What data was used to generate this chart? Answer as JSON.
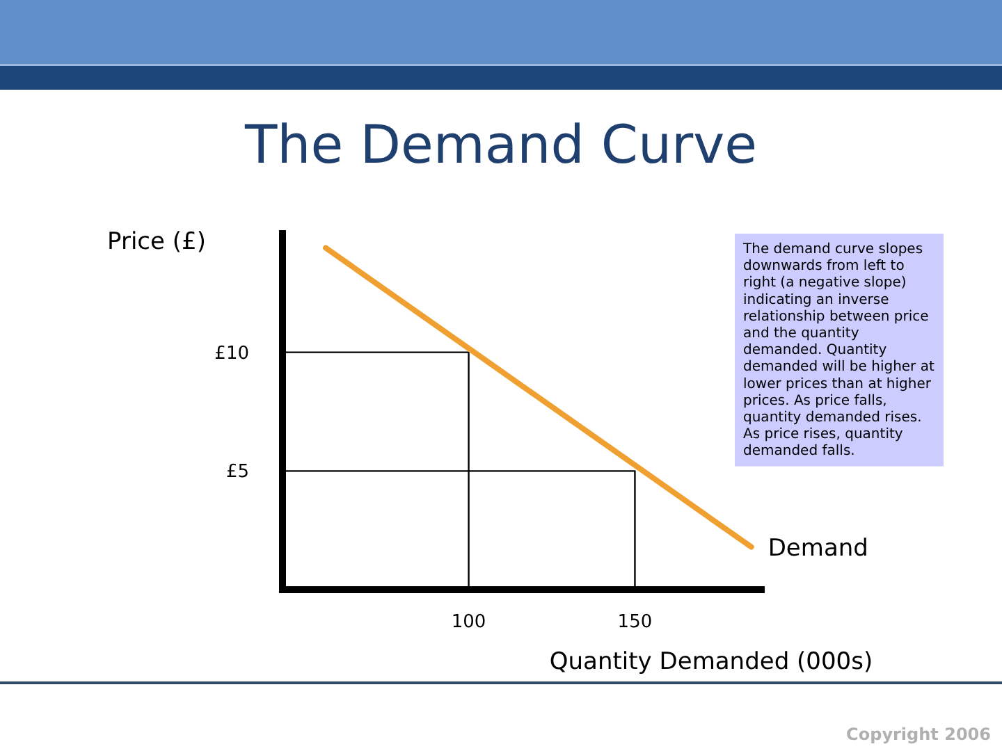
{
  "chart_data": {
    "type": "line",
    "title": "The Demand Curve",
    "xlabel": "Quantity Demanded (000s)",
    "ylabel": "Price (£)",
    "xlim": [
      44,
      188
    ],
    "xticks": [
      100,
      150
    ],
    "ylim": [
      0,
      15
    ],
    "yticks": [
      {
        "value": 5,
        "label": "£5"
      },
      {
        "value": 10,
        "label": "£10"
      }
    ],
    "series": [
      {
        "name": "Demand",
        "color": "#f0a030",
        "x": [
          57,
          185
        ],
        "values": [
          14.4,
          1.8
        ]
      },
      {
        "color": "#000000",
        "x": [
          44,
          100,
          100
        ],
        "values": [
          10,
          10,
          0
        ]
      },
      {
        "color": "#000000",
        "x": [
          44,
          150,
          150
        ],
        "values": [
          5,
          5,
          0
        ]
      }
    ],
    "annotations": [
      "The demand curve slopes downwards from left to right (a negative slope) indicating an inverse relationship between price and the quantity demanded. Quantity demanded will be higher at lower prices than at higher prices. As price falls, quantity demanded rises. As price rises, quantity demanded falls.",
      "Copyright 2006"
    ]
  }
}
